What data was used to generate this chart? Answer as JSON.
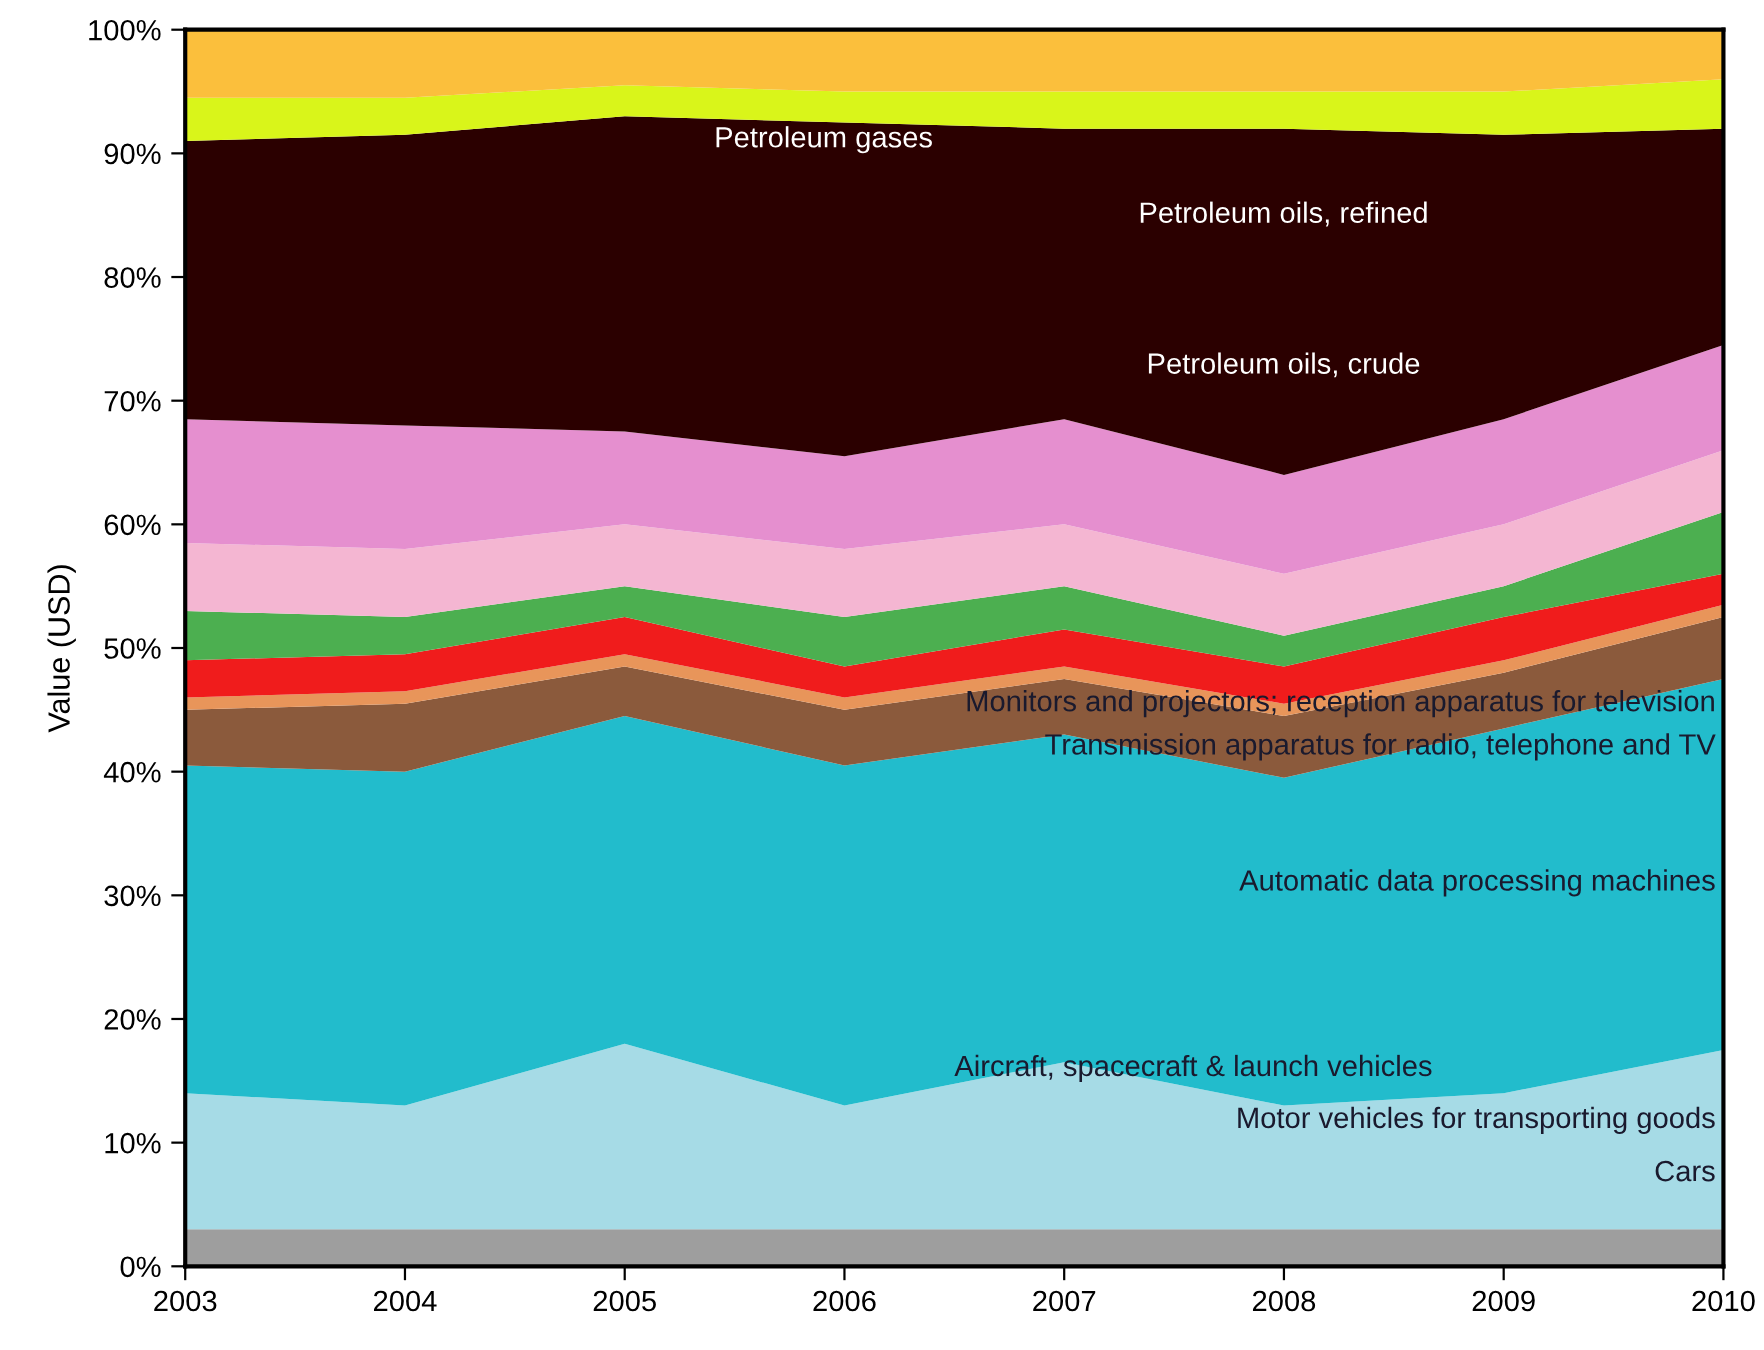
{
  "chart_data": {
    "type": "area",
    "stacked": true,
    "ylabel": "Value (USD)",
    "x": [
      2003,
      2004,
      2005,
      2006,
      2007,
      2008,
      2009,
      2010
    ],
    "xlim": [
      2003,
      2010
    ],
    "xticks": [
      2003,
      2004,
      2005,
      2006,
      2007,
      2008,
      2009,
      2010
    ],
    "ylim": [
      0,
      100
    ],
    "yticks": [
      {
        "value": 0,
        "label": "0%"
      },
      {
        "value": 10,
        "label": "10%"
      },
      {
        "value": 20,
        "label": "20%"
      },
      {
        "value": 30,
        "label": "30%"
      },
      {
        "value": 40,
        "label": "40%"
      },
      {
        "value": 50,
        "label": "50%"
      },
      {
        "value": 60,
        "label": "60%"
      },
      {
        "value": 70,
        "label": "70%"
      },
      {
        "value": 80,
        "label": "80%"
      },
      {
        "value": 90,
        "label": "90%"
      },
      {
        "value": 100,
        "label": "100%"
      }
    ],
    "grid": false,
    "series": [
      {
        "color": "#9e9e9e",
        "values": [
          3,
          3,
          3,
          3,
          3,
          3,
          3,
          3
        ]
      },
      {
        "color": "#a6dbe6",
        "values": [
          11,
          10,
          15,
          10,
          13.5,
          10,
          11,
          14.5
        ]
      },
      {
        "color": "#22bccc",
        "values": [
          26.5,
          27,
          26.5,
          27.5,
          26.5,
          26.5,
          29.5,
          30
        ]
      },
      {
        "color": "#8b5a3c",
        "values": [
          4.5,
          5.5,
          4,
          4.5,
          4.5,
          5,
          4.5,
          5
        ]
      },
      {
        "color": "#e8955a",
        "values": [
          1,
          1,
          1,
          1,
          1,
          1,
          1,
          1
        ]
      },
      {
        "color": "#f01c1c",
        "values": [
          3,
          3,
          3,
          2.5,
          3,
          3,
          3.5,
          2.5
        ]
      },
      {
        "color": "#4caf50",
        "values": [
          4,
          3,
          2.5,
          4,
          3.5,
          2.5,
          2.5,
          5
        ]
      },
      {
        "color": "#f4b6d2",
        "values": [
          5.5,
          5.5,
          5,
          5.5,
          5,
          5,
          5,
          5
        ]
      },
      {
        "color": "#e58fcf",
        "values": [
          10,
          10,
          7.5,
          7.5,
          8.5,
          8,
          8.5,
          8.5
        ]
      },
      {
        "color": "#2b0000",
        "values": [
          22.5,
          23.5,
          25.5,
          27,
          23.5,
          28,
          23,
          17.5
        ]
      },
      {
        "color": "#d9f51a",
        "values": [
          3.5,
          3,
          2.5,
          2.5,
          3,
          3,
          3.5,
          4
        ]
      },
      {
        "color": "#fbbf3c",
        "values": [
          5.5,
          5.5,
          4.5,
          5,
          5,
          5,
          5,
          4
        ]
      }
    ],
    "annotations": [
      "Petroleum gases",
      "Petroleum oils, refined",
      "Petroleum oils, crude",
      "Monitors and projectors; reception apparatus for television",
      "Transmission apparatus for radio, telephone and TV",
      "Automatic data processing machines",
      "Aircraft, spacecraft & launch vehicles",
      "Motor vehicles for transporting goods",
      "Cars"
    ]
  }
}
